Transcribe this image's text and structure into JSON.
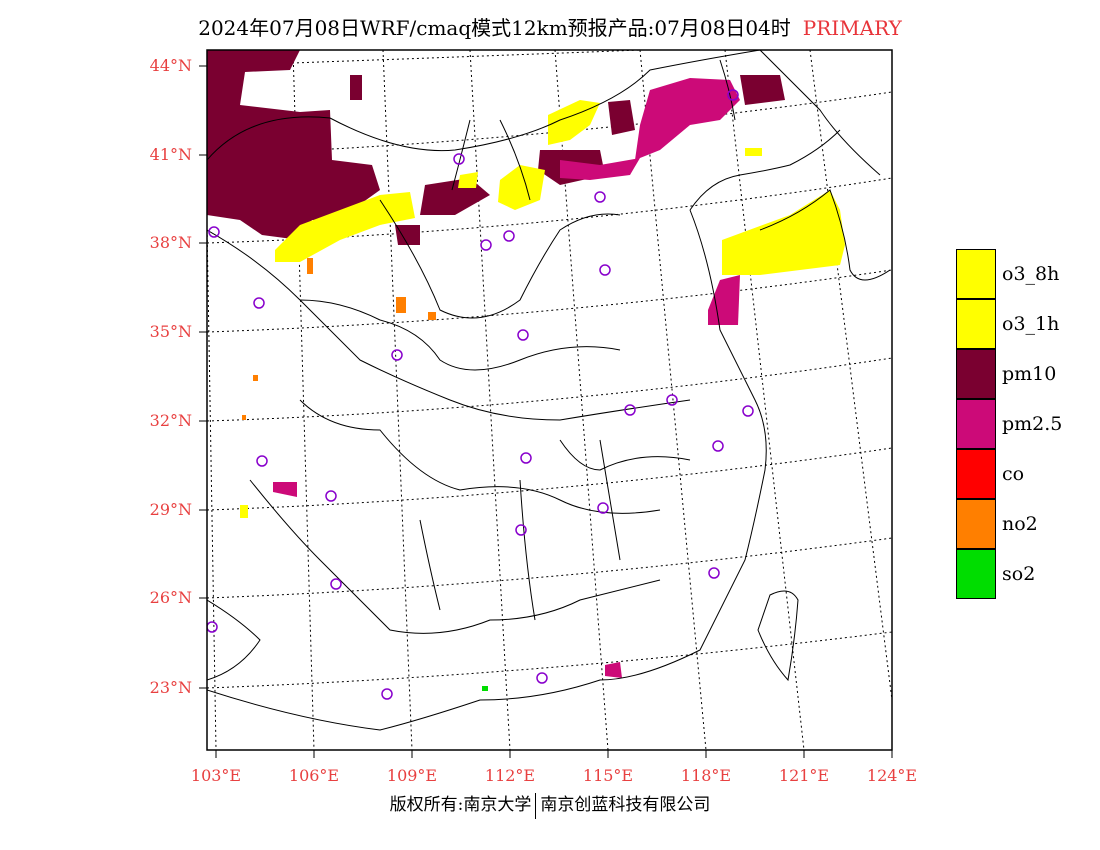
{
  "title": {
    "text": "2024年07月08日WRF/cmaq模式12km预报产品:07月08日04时",
    "tag": "PRIMARY"
  },
  "axes": {
    "lat_labels": [
      "44°N",
      "41°N",
      "38°N",
      "35°N",
      "32°N",
      "29°N",
      "26°N",
      "23°N"
    ],
    "lon_labels": [
      "103°E",
      "106°E",
      "109°E",
      "112°E",
      "115°E",
      "118°E",
      "121°E",
      "124°E"
    ]
  },
  "legend": [
    {
      "label": "o3_8h",
      "color": "#ffff00"
    },
    {
      "label": "o3_1h",
      "color": "#ffff00"
    },
    {
      "label": "pm10",
      "color": "#7a0030"
    },
    {
      "label": "pm2.5",
      "color": "#cc0a78"
    },
    {
      "label": "co",
      "color": "#ff0000"
    },
    {
      "label": "no2",
      "color": "#ff7f00"
    },
    {
      "label": "so2",
      "color": "#00dd00"
    }
  ],
  "footer": {
    "left": "版权所有:南京大学",
    "right": "南京创蓝科技有限公司"
  }
}
